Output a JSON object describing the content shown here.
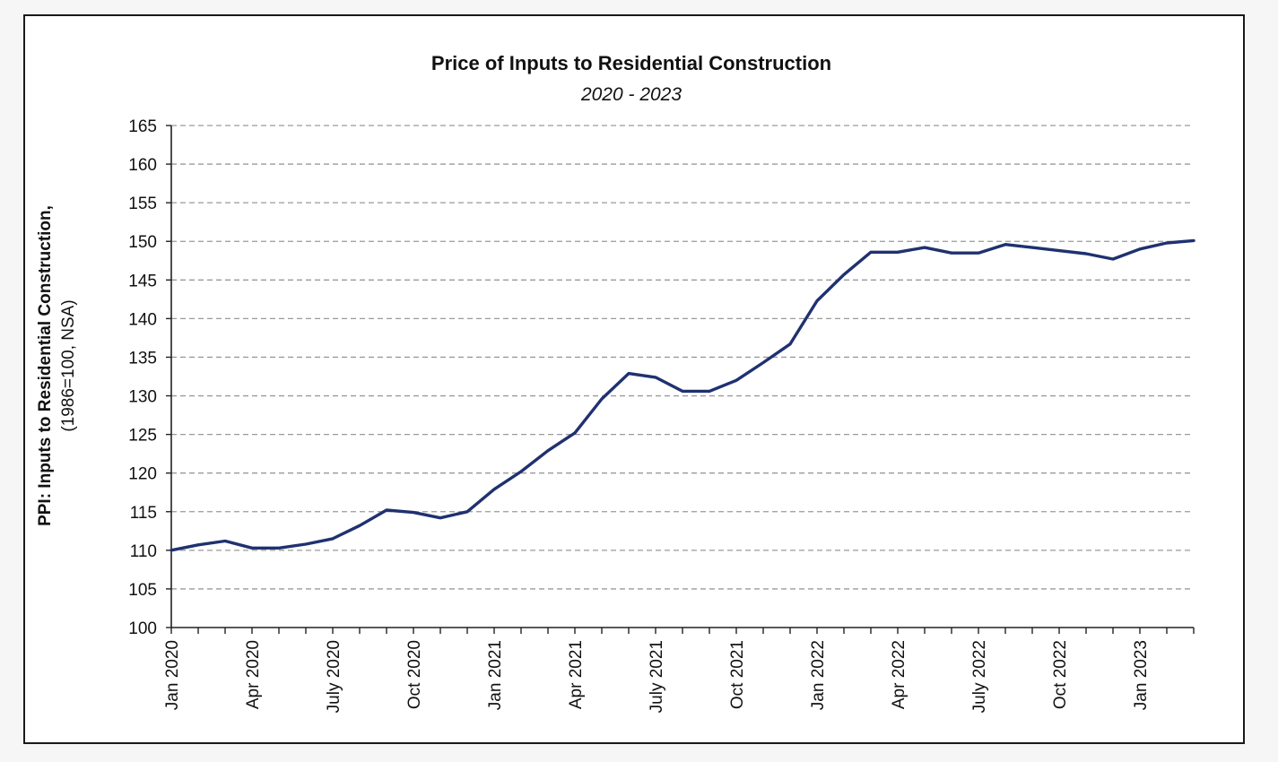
{
  "chart_data": {
    "type": "line",
    "title": "Price of Inputs to Residential Construction",
    "subtitle": "2020 - 2023",
    "ylabel": "PPI: Inputs to Residential Construction,",
    "ylabel_sub": "(1986=100, NSA)",
    "xlabel": "",
    "ylim": [
      100,
      165
    ],
    "yticks": [
      100,
      105,
      110,
      115,
      120,
      125,
      130,
      135,
      140,
      145,
      150,
      155,
      160,
      165
    ],
    "grid": "horizontal dashed",
    "legend": "none",
    "line_color": "#1f3170",
    "x_tick_labels": [
      "Jan 2020",
      "Apr 2020",
      "July 2020",
      "Oct 2020",
      "Jan 2021",
      "Apr 2021",
      "July 2021",
      "Oct 2021",
      "Jan 2022",
      "Apr 2022",
      "July 2022",
      "Oct 2022",
      "Jan 2023"
    ],
    "x": [
      "Jan 2020",
      "Feb 2020",
      "Mar 2020",
      "Apr 2020",
      "May 2020",
      "Jun 2020",
      "Jul 2020",
      "Aug 2020",
      "Sep 2020",
      "Oct 2020",
      "Nov 2020",
      "Dec 2020",
      "Jan 2021",
      "Feb 2021",
      "Mar 2021",
      "Apr 2021",
      "May 2021",
      "Jun 2021",
      "Jul 2021",
      "Aug 2021",
      "Sep 2021",
      "Oct 2021",
      "Nov 2021",
      "Dec 2021",
      "Jan 2022",
      "Feb 2022",
      "Mar 2022",
      "Apr 2022",
      "May 2022",
      "Jun 2022",
      "Jul 2022",
      "Aug 2022",
      "Sep 2022",
      "Oct 2022",
      "Nov 2022",
      "Dec 2022",
      "Jan 2023",
      "Feb 2023",
      "Mar 2023"
    ],
    "series": [
      {
        "values": [
          110.0,
          110.7,
          111.2,
          110.3,
          110.3,
          110.8,
          111.5,
          113.2,
          115.2,
          114.9,
          114.2,
          115.0,
          117.9,
          120.2,
          122.9,
          125.2,
          129.6,
          132.9,
          132.4,
          130.6,
          130.6,
          132.0,
          134.3,
          136.7,
          142.3,
          145.7,
          148.6,
          148.6,
          149.2,
          148.5,
          148.5,
          149.6,
          149.2,
          148.8,
          148.4,
          147.7,
          149.0,
          149.8,
          150.1
        ]
      }
    ]
  }
}
